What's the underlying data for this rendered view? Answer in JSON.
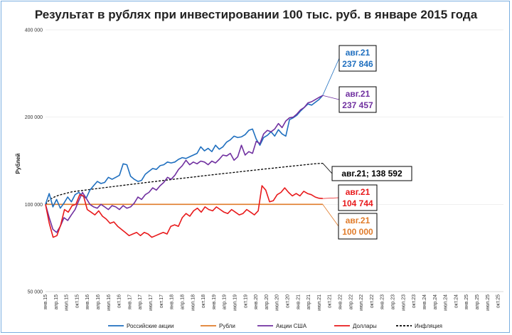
{
  "colors": {
    "ru": "#1f6fbf",
    "rub": "#e07b2a",
    "us": "#7030a0",
    "usd": "#e8191b",
    "inf": "#000000"
  },
  "chart_data": {
    "type": "line",
    "title": "Результат в рублях при инвестировании 100 тыс. руб. в январе 2015 года",
    "ylabel": "Рублей",
    "yscale": "log",
    "ylim": [
      50000,
      400000
    ],
    "yticks": [
      50000,
      100000,
      200000,
      400000
    ],
    "ytick_labels": [
      "50 000",
      "100 000",
      "200 000",
      "400 000"
    ],
    "x_labels": [
      "янв.15",
      "апр.15",
      "июл.15",
      "окт.15",
      "янв.16",
      "апр.16",
      "июл.16",
      "окт.16",
      "янв.17",
      "апр.17",
      "июл.17",
      "окт.17",
      "янв.18",
      "апр.18",
      "июл.18",
      "окт.18",
      "янв.19",
      "апр.19",
      "июл.19",
      "окт.19",
      "янв.20",
      "апр.20",
      "июл.20",
      "окт.20",
      "янв.21",
      "апр.21",
      "июл.21",
      "окт.21",
      "янв.22",
      "апр.22",
      "июл.22",
      "окт.22",
      "янв.23",
      "апр.23",
      "июл.23",
      "окт.23",
      "янв.24",
      "апр.24",
      "июл.24",
      "окт.24",
      "янв.25",
      "апр.25",
      "июл.25",
      "окт.25"
    ],
    "legend_position": "bottom",
    "series": [
      {
        "key": "ru",
        "name": "Российские акции",
        "dash": false,
        "values": [
          100000,
          109000,
          98000,
          104000,
          97000,
          101000,
          106000,
          102000,
          108000,
          110000,
          107000,
          105000,
          112000,
          116000,
          120000,
          118000,
          119000,
          124000,
          122000,
          124000,
          126000,
          138000,
          137000,
          125000,
          122000,
          120000,
          121000,
          127000,
          130000,
          133000,
          132000,
          136000,
          137000,
          140000,
          139000,
          140000,
          143000,
          145000,
          144000,
          146000,
          148000,
          150000,
          158000,
          153000,
          156000,
          152000,
          160000,
          155000,
          158000,
          164000,
          167000,
          172000,
          170000,
          171000,
          174000,
          180000,
          182000,
          168000,
          160000,
          170000,
          173000,
          178000,
          172000,
          181000,
          175000,
          172000,
          196000,
          199000,
          203000,
          210000,
          216000,
          222000,
          220000,
          225000,
          230000,
          237846
        ]
      },
      {
        "key": "rub",
        "name": "Рубли",
        "dash": false,
        "values": [
          100000,
          100000,
          100000,
          100000,
          100000,
          100000,
          100000,
          100000,
          100000,
          100000,
          100000,
          100000,
          100000,
          100000,
          100000,
          100000,
          100000,
          100000,
          100000,
          100000,
          100000,
          100000,
          100000,
          100000,
          100000,
          100000,
          100000,
          100000,
          100000,
          100000,
          100000,
          100000,
          100000,
          100000,
          100000,
          100000,
          100000,
          100000,
          100000,
          100000,
          100000,
          100000,
          100000,
          100000,
          100000,
          100000,
          100000,
          100000,
          100000,
          100000,
          100000,
          100000,
          100000,
          100000,
          100000,
          100000,
          100000,
          100000,
          100000,
          100000,
          100000,
          100000,
          100000,
          100000,
          100000,
          100000,
          100000,
          100000,
          100000,
          100000,
          100000,
          100000,
          100000,
          100000,
          100000,
          100000,
          100000,
          100000,
          100000,
          100000
        ]
      },
      {
        "key": "us",
        "name": "Акции США",
        "dash": false,
        "values": [
          100000,
          90000,
          82000,
          80000,
          84000,
          90000,
          88000,
          92000,
          96000,
          103000,
          110000,
          105000,
          100000,
          98000,
          97000,
          100000,
          98000,
          96000,
          99000,
          98000,
          96000,
          99000,
          97000,
          98000,
          101000,
          106000,
          104000,
          108000,
          110000,
          114000,
          112000,
          116000,
          119000,
          124000,
          122000,
          126000,
          132000,
          136000,
          142000,
          137000,
          140000,
          138000,
          141000,
          140000,
          137000,
          141000,
          139000,
          143000,
          148000,
          147000,
          150000,
          142000,
          146000,
          160000,
          148000,
          152000,
          150000,
          165000,
          162000,
          175000,
          180000,
          178000,
          182000,
          190000,
          184000,
          194000,
          199000,
          200000,
          205000,
          212000,
          216000,
          224000,
          226000,
          230000,
          234000,
          237457
        ]
      },
      {
        "key": "usd",
        "name": "Доллары",
        "dash": false,
        "values": [
          100000,
          86000,
          77000,
          78000,
          85000,
          96000,
          94000,
          99000,
          100000,
          108000,
          107000,
          96000,
          94000,
          92000,
          95000,
          91000,
          89000,
          86000,
          87000,
          84000,
          82000,
          80000,
          78000,
          79000,
          80000,
          78000,
          80000,
          79000,
          77000,
          78000,
          79000,
          80000,
          79000,
          84000,
          85000,
          84000,
          90000,
          93000,
          91000,
          95000,
          97000,
          94000,
          98000,
          96000,
          95000,
          98000,
          96000,
          94000,
          93000,
          96000,
          94000,
          92000,
          93000,
          96000,
          94000,
          92000,
          95000,
          116000,
          112000,
          102000,
          103000,
          108000,
          110000,
          114000,
          110000,
          107000,
          109000,
          107000,
          111000,
          109000,
          108000,
          106000,
          105000,
          104744
        ]
      },
      {
        "key": "inf",
        "name": "Инфляция",
        "dash": true,
        "values": [
          100000,
          104000,
          106000,
          107500,
          108500,
          109500,
          110500,
          111000,
          111500,
          112000,
          112500,
          113000,
          113500,
          114000,
          114500,
          115000,
          115500,
          116000,
          116500,
          117000,
          117500,
          118000,
          118500,
          119000,
          119500,
          120000,
          120500,
          121000,
          121500,
          122000,
          122500,
          123000,
          123500,
          124000,
          124500,
          125000,
          125500,
          126000,
          126500,
          127000,
          127500,
          128000,
          128500,
          129000,
          129500,
          130000,
          130500,
          131000,
          131500,
          132000,
          132500,
          133000,
          133500,
          134000,
          134500,
          135000,
          135500,
          136000,
          136500,
          137000,
          137500,
          138000,
          138300,
          138592
        ]
      }
    ],
    "callouts": [
      {
        "key": "ru",
        "label": "авг.21",
        "value": "237 846"
      },
      {
        "key": "us",
        "label": "авг.21",
        "value": "237 457"
      },
      {
        "key": "inf",
        "label": "авг.21; 138 592",
        "value": ""
      },
      {
        "key": "usd",
        "label": "авг.21",
        "value": "104 744"
      },
      {
        "key": "rub",
        "label": "авг.21",
        "value": "100 000"
      }
    ]
  }
}
